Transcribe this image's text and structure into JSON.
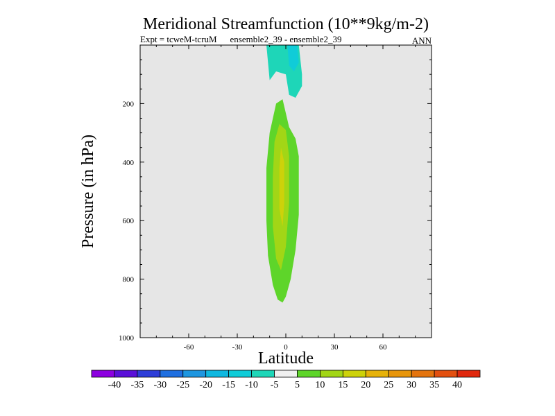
{
  "chart_data": {
    "type": "contour",
    "title": "Meridional Streamfunction (10**9kg/m-2)",
    "subtitle_left": "Expt = tcweM-tcruM",
    "subtitle_center": "ensemble2_39 - ensemble2_39",
    "subtitle_right": "ANN",
    "xlabel": "Latitude",
    "ylabel": "Pressure (in hPa)",
    "xlim": [
      -90,
      90
    ],
    "ylim": [
      1000,
      0
    ],
    "xticks": [
      -60,
      -30,
      0,
      30,
      60
    ],
    "yticks": [
      200,
      400,
      600,
      800,
      1000
    ],
    "background_color": "#e6e6e6",
    "levels": [
      {
        "range": [
          -45,
          -40
        ],
        "color": "#8c00e0"
      },
      {
        "range": [
          -40,
          -35
        ],
        "color": "#5a10d8"
      },
      {
        "range": [
          -35,
          -30
        ],
        "color": "#2e3ed8"
      },
      {
        "range": [
          -30,
          -25
        ],
        "color": "#1f6fe0"
      },
      {
        "range": [
          -25,
          -20
        ],
        "color": "#1e96e0"
      },
      {
        "range": [
          -20,
          -15
        ],
        "color": "#0fb8e0"
      },
      {
        "range": [
          -15,
          -10
        ],
        "color": "#10ccd8"
      },
      {
        "range": [
          -10,
          -5
        ],
        "color": "#1ed6b8"
      },
      {
        "range": [
          -5,
          5
        ],
        "color": "#f0f0f0"
      },
      {
        "range": [
          5,
          10
        ],
        "color": "#5ed52a"
      },
      {
        "range": [
          10,
          15
        ],
        "color": "#a2d616"
      },
      {
        "range": [
          15,
          20
        ],
        "color": "#cdd20a"
      },
      {
        "range": [
          20,
          25
        ],
        "color": "#e6b20a"
      },
      {
        "range": [
          25,
          30
        ],
        "color": "#e8960c"
      },
      {
        "range": [
          30,
          35
        ],
        "color": "#e4740e"
      },
      {
        "range": [
          35,
          40
        ],
        "color": "#e35010"
      },
      {
        "range": [
          40,
          45
        ],
        "color": "#e0280e"
      }
    ],
    "colorbar_labels": [
      "-40",
      "-35",
      "-30",
      "-25",
      "-20",
      "-15",
      "-10",
      "-5",
      "5",
      "10",
      "15",
      "20",
      "25",
      "30",
      "35",
      "40"
    ],
    "regions": [
      {
        "name": "negative-cell-upper",
        "level": "-10 to -5",
        "color": "#1ed6b8",
        "outline": [
          [
            -12,
            0
          ],
          [
            -10,
            120
          ],
          [
            -6,
            90
          ],
          [
            0,
            100
          ],
          [
            2,
            170
          ],
          [
            6,
            180
          ],
          [
            10,
            140
          ],
          [
            10,
            100
          ],
          [
            8,
            0
          ]
        ]
      },
      {
        "name": "negative-core-upper",
        "level": "-15 to -10",
        "color": "#10ccd8",
        "outline": [
          [
            1,
            0
          ],
          [
            2,
            70
          ],
          [
            5,
            90
          ],
          [
            8,
            60
          ],
          [
            7,
            0
          ]
        ]
      },
      {
        "name": "positive-cell-outer",
        "level": "5 to 10",
        "color": "#5ed52a",
        "outline": [
          [
            -2,
            185
          ],
          [
            -6,
            200
          ],
          [
            -10,
            300
          ],
          [
            -12,
            420
          ],
          [
            -12,
            600
          ],
          [
            -11,
            720
          ],
          [
            -8,
            820
          ],
          [
            -5,
            870
          ],
          [
            -2,
            880
          ],
          [
            0,
            860
          ],
          [
            3,
            800
          ],
          [
            6,
            700
          ],
          [
            8,
            580
          ],
          [
            8,
            380
          ],
          [
            6,
            320
          ],
          [
            2,
            280
          ]
        ]
      },
      {
        "name": "positive-cell-middle",
        "level": "10 to 15",
        "color": "#a2d616",
        "outline": [
          [
            -4,
            270
          ],
          [
            -7,
            330
          ],
          [
            -8,
            450
          ],
          [
            -8,
            620
          ],
          [
            -6,
            730
          ],
          [
            -3,
            770
          ],
          [
            0,
            690
          ],
          [
            2,
            540
          ],
          [
            2,
            380
          ],
          [
            0,
            290
          ]
        ]
      },
      {
        "name": "positive-cell-core",
        "level": "15 to 20",
        "color": "#cdd20a",
        "outline": [
          [
            -3,
            350
          ],
          [
            -4,
            420
          ],
          [
            -4,
            560
          ],
          [
            -2,
            620
          ],
          [
            -1,
            540
          ],
          [
            -1,
            400
          ]
        ]
      }
    ]
  }
}
